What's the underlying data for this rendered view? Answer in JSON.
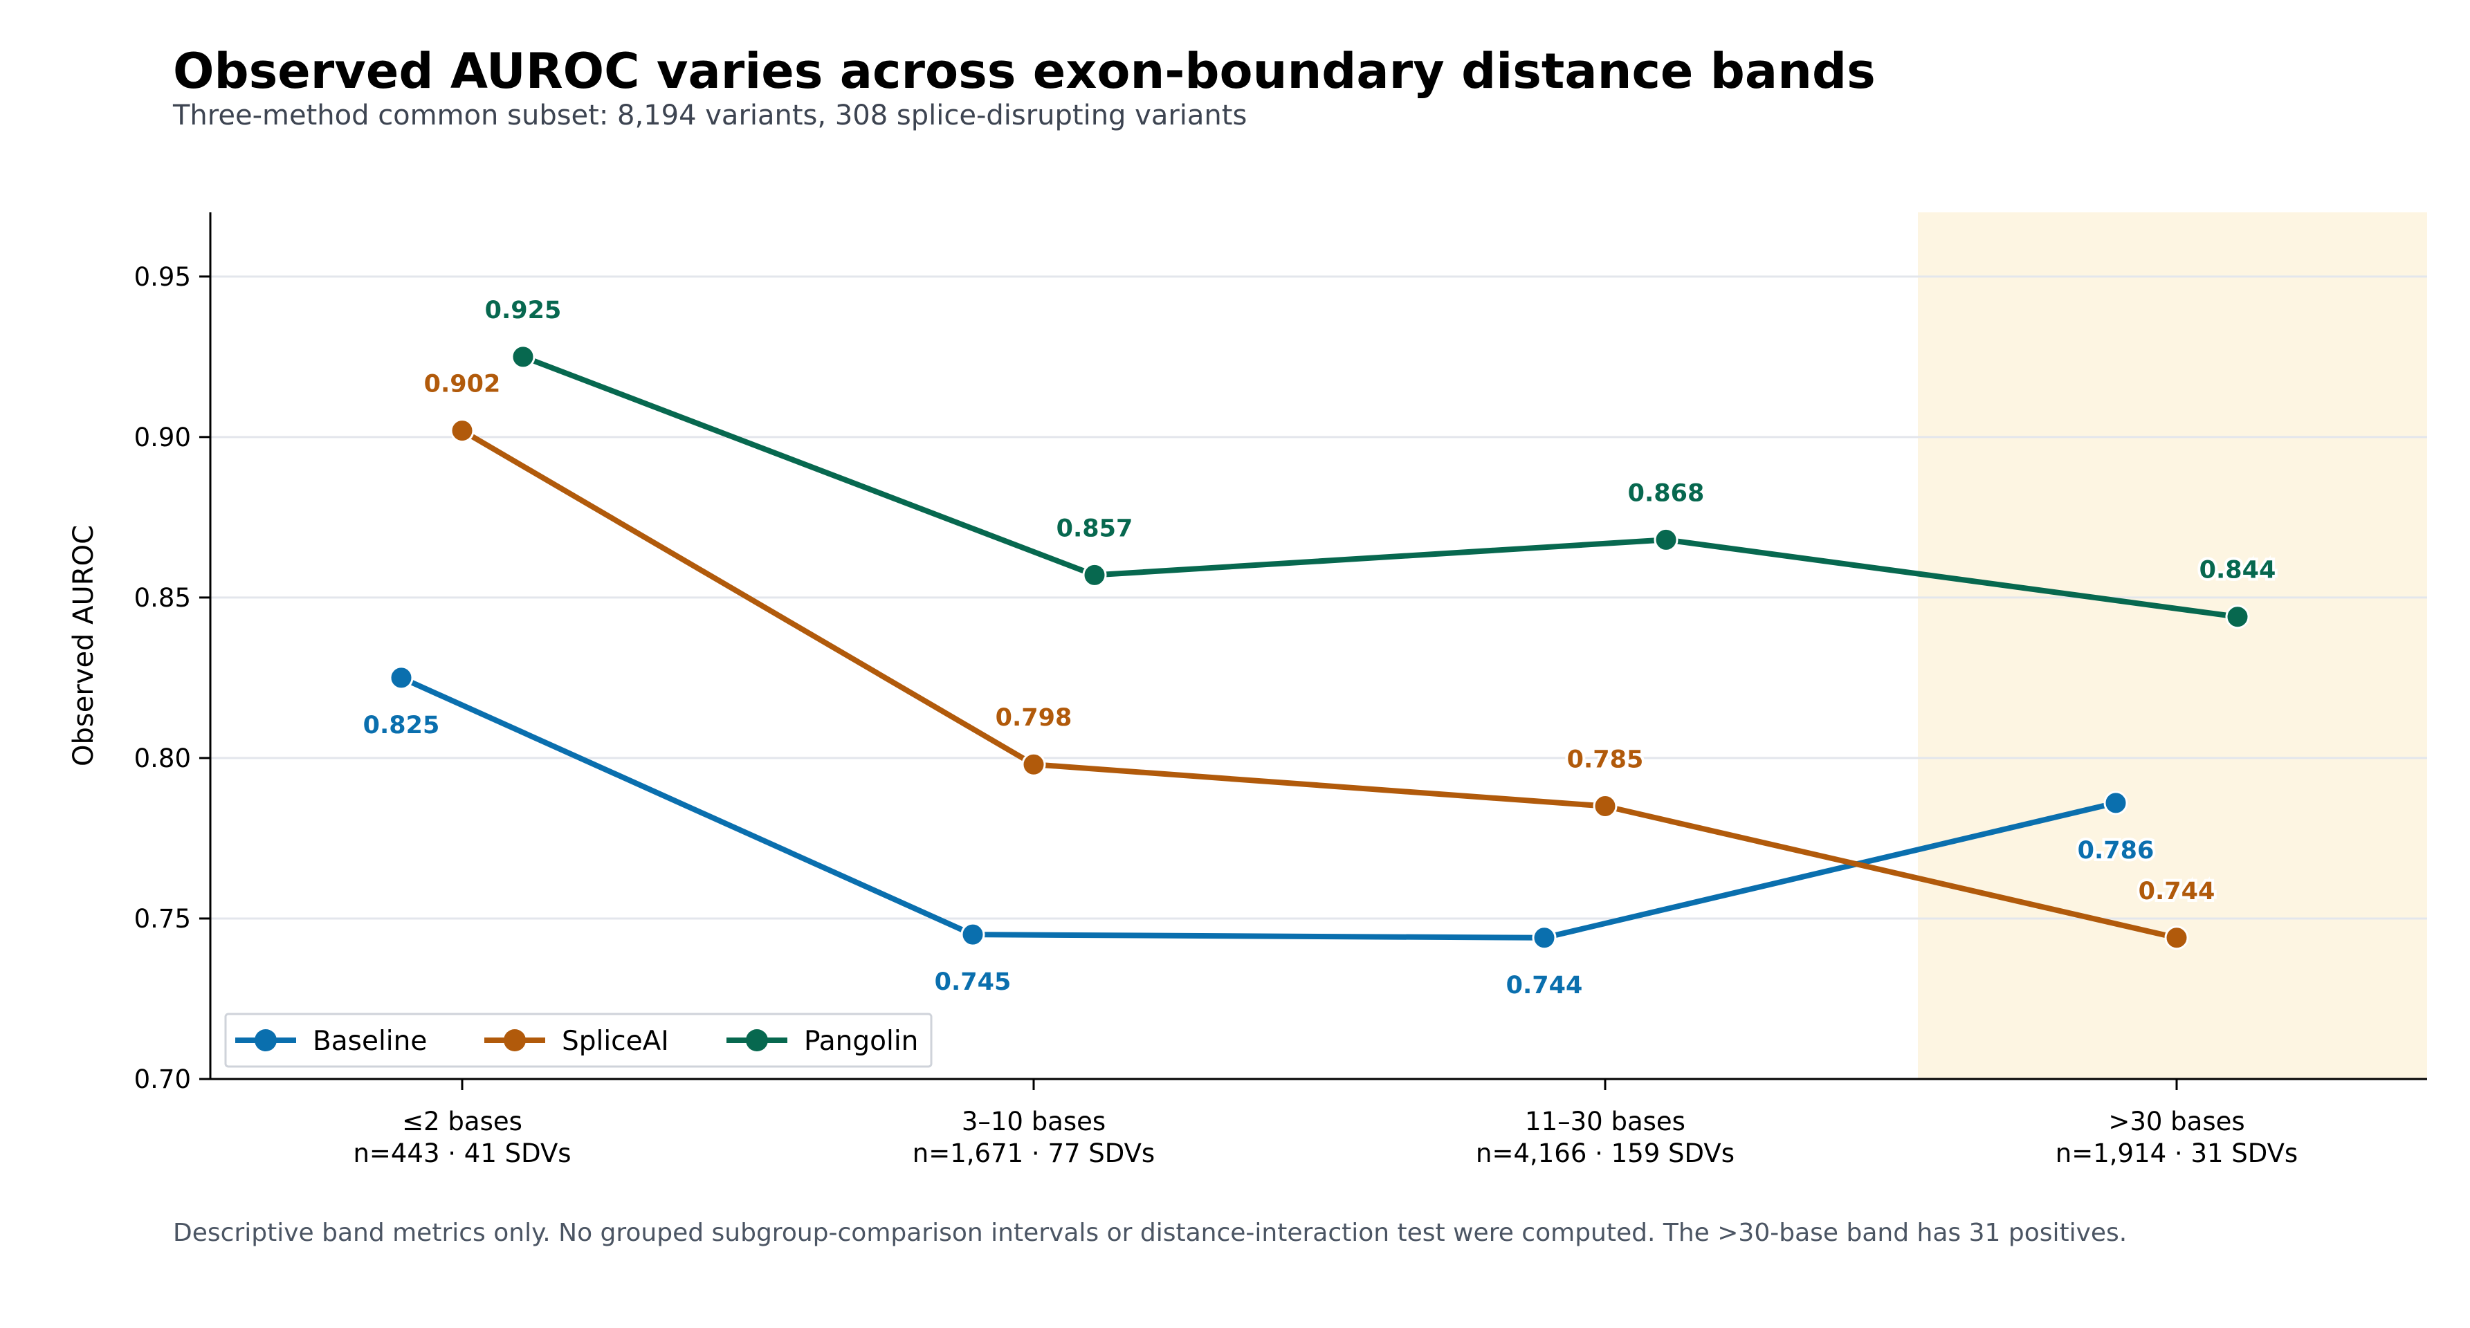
{
  "title": "Observed AUROC varies across exon-boundary distance bands",
  "subtitle": "Three-method common subset: 8,194 variants, 308 splice-disrupting variants",
  "footnote": "Descriptive band metrics only. No grouped subgroup-comparison intervals or distance-interaction test were computed. The >30-base band has 31 positives.",
  "colors": {
    "Baseline": "#0a6fae",
    "SpliceAI": "#b15a0b",
    "Pangolin": "#07684f",
    "highlight_band": "#fdf5e2",
    "grid": "#e3e6ec"
  },
  "chart_data": {
    "type": "line",
    "ylabel": "Observed AUROC",
    "xlabel": "",
    "ylim": [
      0.7,
      0.97
    ],
    "yticks": [
      "0.70",
      "0.75",
      "0.80",
      "0.85",
      "0.90",
      "0.95"
    ],
    "grid": true,
    "legend_placement": "lower-left",
    "highlighted_category": ">30 bases",
    "categories": [
      {
        "label": "≤2 bases",
        "sublabel": "n=443 · 41 SDVs"
      },
      {
        "label": "3–10 bases",
        "sublabel": "n=1,671 · 77 SDVs"
      },
      {
        "label": "11–30 bases",
        "sublabel": "n=4,166 · 159 SDVs"
      },
      {
        "label": ">30 bases",
        "sublabel": "n=1,914 · 31 SDVs"
      }
    ],
    "series": [
      {
        "name": "Baseline",
        "values": [
          0.825,
          0.745,
          0.744,
          0.786
        ],
        "labels": [
          "0.825",
          "0.745",
          "0.744",
          "0.786"
        ],
        "label_position": "below"
      },
      {
        "name": "SpliceAI",
        "values": [
          0.902,
          0.798,
          0.785,
          0.744
        ],
        "labels": [
          "0.902",
          "0.798",
          "0.785",
          "0.744"
        ],
        "label_position": "above"
      },
      {
        "name": "Pangolin",
        "values": [
          0.925,
          0.857,
          0.868,
          0.844
        ],
        "labels": [
          "0.925",
          "0.857",
          "0.868",
          "0.844"
        ],
        "label_position": "above"
      }
    ]
  }
}
